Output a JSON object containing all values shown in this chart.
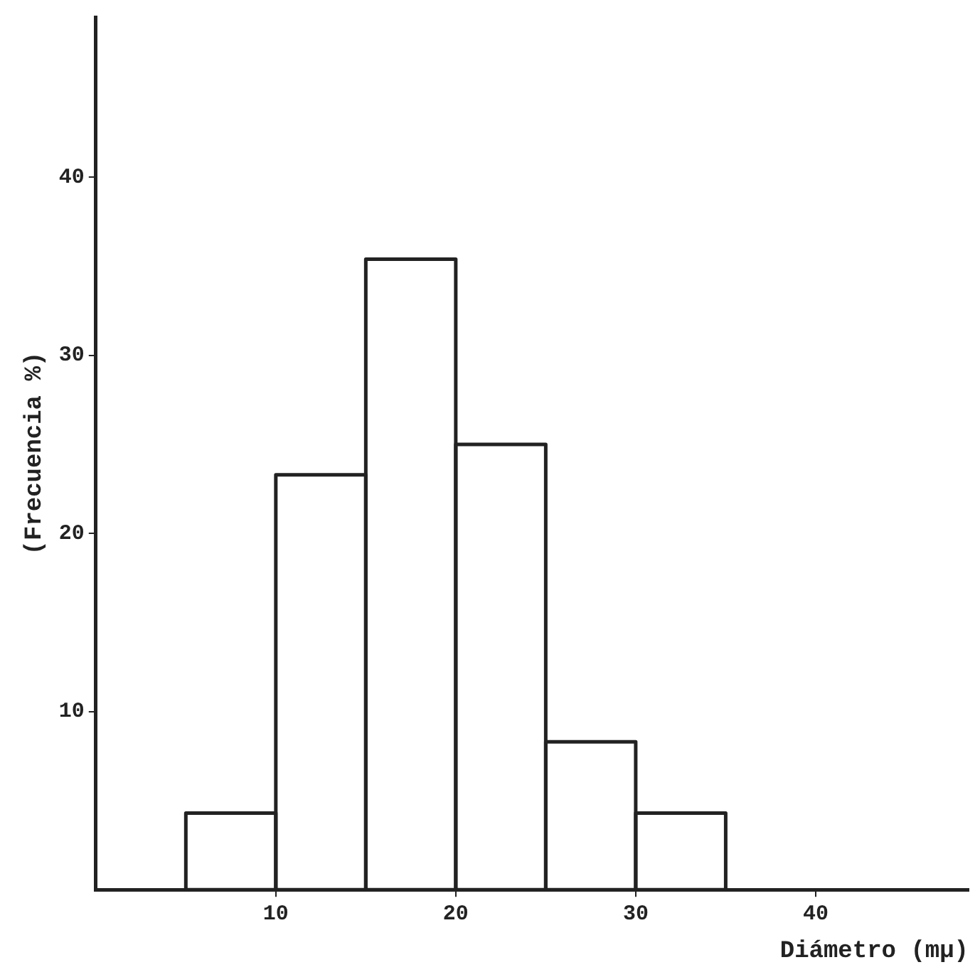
{
  "chart_data": {
    "type": "histogram",
    "xlabel": "Diámetro (mμ)",
    "ylabel": "(Frecuencia %)",
    "bins": [
      5,
      10,
      15,
      20,
      25,
      30,
      35
    ],
    "values": [
      4.3,
      23.3,
      35.4,
      25,
      8.3,
      4.3
    ],
    "color": "#222222",
    "xlim": [
      0,
      48.5
    ],
    "xticks": [
      10,
      20,
      30,
      40
    ],
    "ylim": [
      0,
      49
    ],
    "yticks": [
      10,
      20,
      30,
      40
    ],
    "grid": false,
    "legend": false
  }
}
